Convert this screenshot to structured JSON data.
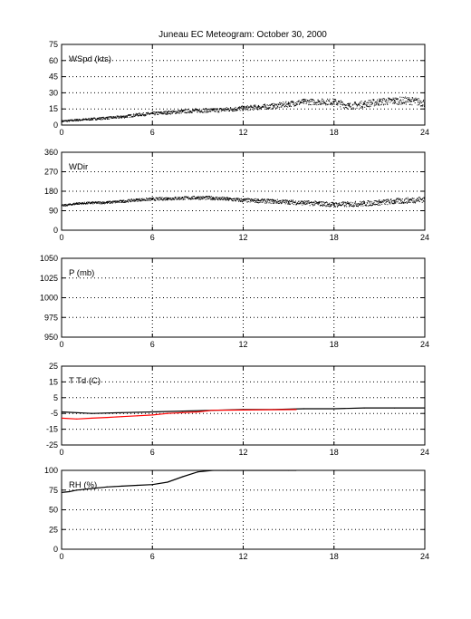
{
  "page": {
    "title": "Juneau EC Meteogram:   October 30, 2000"
  },
  "chart_data": [
    {
      "type": "scatter",
      "label": "WSpd (kts)",
      "xlim": [
        0,
        24
      ],
      "ylim": [
        0,
        75
      ],
      "xticks": [
        0,
        6,
        12,
        18,
        24
      ],
      "yticks": [
        0,
        15,
        30,
        45,
        60,
        75
      ],
      "grid": true,
      "series": [
        {
          "color": "#000000",
          "x": [
            0,
            1,
            2,
            3,
            4,
            5,
            6,
            7,
            8,
            9,
            10,
            11,
            12,
            13,
            14,
            15,
            16,
            17,
            18,
            19,
            20,
            21,
            22,
            23,
            24
          ],
          "y": [
            4,
            5,
            6,
            7,
            8,
            10,
            11,
            12,
            13,
            14,
            14,
            15,
            16,
            17,
            18,
            20,
            22,
            22,
            22,
            18,
            20,
            22,
            23,
            23,
            21
          ]
        }
      ]
    },
    {
      "type": "scatter",
      "label": "WDir",
      "xlim": [
        0,
        24
      ],
      "ylim": [
        0,
        360
      ],
      "xticks": [
        0,
        6,
        12,
        18,
        24
      ],
      "yticks": [
        0,
        90,
        180,
        270,
        360
      ],
      "grid": true,
      "series": [
        {
          "color": "#000000",
          "x": [
            0,
            1,
            2,
            3,
            4,
            5,
            6,
            7,
            8,
            9,
            10,
            11,
            12,
            13,
            14,
            15,
            16,
            17,
            18,
            19,
            20,
            21,
            22,
            23,
            24
          ],
          "y": [
            115,
            125,
            128,
            130,
            135,
            142,
            145,
            148,
            150,
            152,
            150,
            145,
            140,
            138,
            135,
            132,
            128,
            125,
            120,
            122,
            125,
            130,
            135,
            140,
            145
          ]
        }
      ]
    },
    {
      "type": "line",
      "label": "P (mb)",
      "xlim": [
        0,
        24
      ],
      "ylim": [
        950,
        1050
      ],
      "xticks": [
        0,
        6,
        12,
        18,
        24
      ],
      "yticks": [
        950,
        975,
        1000,
        1025,
        1050
      ],
      "grid": true,
      "series": []
    },
    {
      "type": "line",
      "label": "T Td (C)",
      "xlim": [
        0,
        24
      ],
      "ylim": [
        -25,
        25
      ],
      "xticks": [
        0,
        6,
        12,
        18,
        24
      ],
      "yticks": [
        -25,
        -15,
        -5,
        5,
        15,
        25
      ],
      "grid": true,
      "series": [
        {
          "color": "#000000",
          "x": [
            0,
            2,
            4,
            6,
            8,
            10,
            12,
            14,
            16,
            18,
            20,
            22,
            24
          ],
          "y": [
            -4,
            -5,
            -4.5,
            -4,
            -3.5,
            -3,
            -2.5,
            -2.5,
            -2,
            -2,
            -1.5,
            -1.5,
            -1.5
          ]
        },
        {
          "color": "#ff0000",
          "x": [
            0,
            1,
            2,
            3,
            4,
            5,
            6,
            7,
            8,
            9,
            10,
            15.5
          ],
          "y": [
            -8,
            -8.5,
            -8,
            -7.5,
            -7,
            -6.5,
            -6,
            -5,
            -4.5,
            -4,
            -3,
            -2.5
          ]
        }
      ]
    },
    {
      "type": "line",
      "label": "RH (%)",
      "xlim": [
        0,
        24
      ],
      "ylim": [
        0,
        100
      ],
      "xticks": [
        0,
        6,
        12,
        18,
        24
      ],
      "yticks": [
        0,
        25,
        50,
        75,
        100
      ],
      "grid": true,
      "series": [
        {
          "color": "#000000",
          "x": [
            0,
            0.5,
            1,
            2,
            3,
            4,
            5,
            6,
            7,
            8,
            9,
            10,
            11,
            15,
            15.5
          ],
          "y": [
            72,
            73,
            75,
            77,
            79,
            80,
            81,
            82,
            85,
            92,
            98,
            100,
            100,
            100,
            100
          ]
        }
      ]
    }
  ]
}
